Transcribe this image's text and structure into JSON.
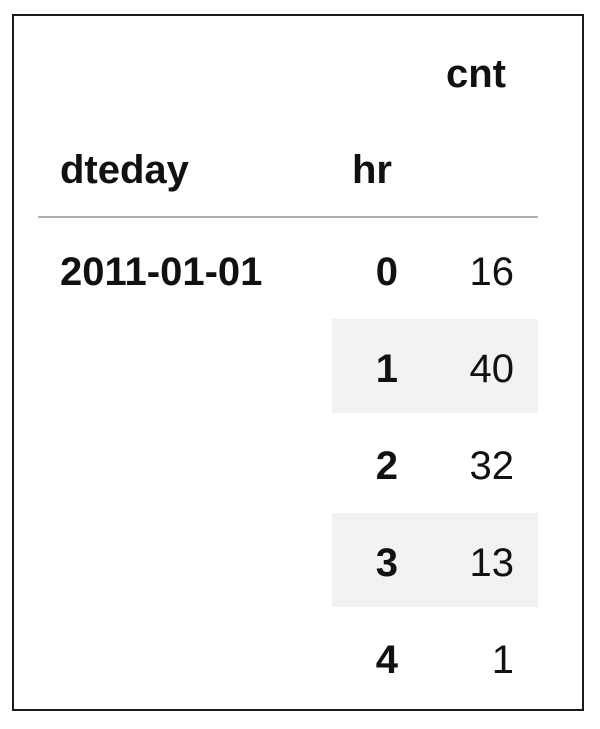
{
  "table": {
    "value_column_header": "cnt",
    "index_names": [
      "dteday",
      "hr"
    ],
    "index_level0_value": "2011-01-01",
    "rows": [
      {
        "hr": "0",
        "cnt": "16",
        "shaded": false
      },
      {
        "hr": "1",
        "cnt": "40",
        "shaded": true
      },
      {
        "hr": "2",
        "cnt": "32",
        "shaded": false
      },
      {
        "hr": "3",
        "cnt": "13",
        "shaded": true
      },
      {
        "hr": "4",
        "cnt": "1",
        "shaded": false
      }
    ]
  },
  "colors": {
    "row_shade": "#f2f2f2",
    "header_rule": "#b0b0b0",
    "border": "#1a1a1a"
  }
}
